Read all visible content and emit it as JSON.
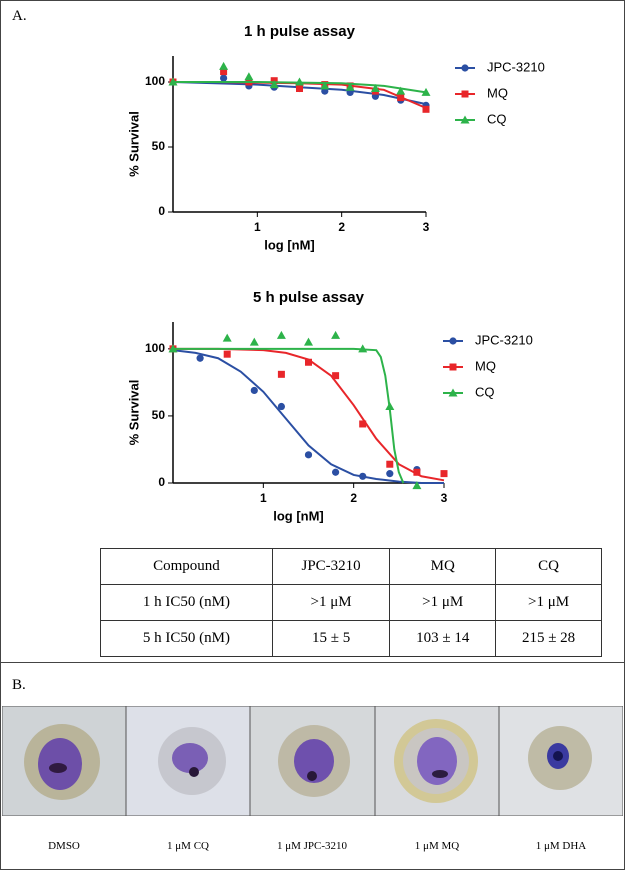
{
  "panels": [
    "A.",
    "B."
  ],
  "chart_data": [
    {
      "type": "scatter",
      "title": "1 h pulse assay",
      "x_label": "log [nM]",
      "y_label": "% Survival",
      "xlim": [
        0,
        3
      ],
      "xticks": [
        1,
        2,
        3
      ],
      "ylim": [
        0,
        120
      ],
      "yticks": [
        0,
        50,
        100
      ],
      "series": [
        {
          "name": "JPC-3210",
          "color": "#2b4fa3",
          "marker": "circle",
          "x": [
            0,
            0.6,
            0.9,
            1.2,
            1.5,
            1.8,
            2.1,
            2.4,
            2.7,
            3
          ],
          "values": [
            100,
            103,
            97,
            96,
            95,
            93,
            92,
            89,
            86,
            82
          ],
          "fit": {
            "x": [
              0,
              0.5,
              1,
              1.5,
              2,
              2.5,
              3
            ],
            "values": [
              100,
              99,
              98,
              96,
              94,
              90,
              83
            ]
          }
        },
        {
          "name": "MQ",
          "color": "#e8262a",
          "marker": "square",
          "x": [
            0,
            0.6,
            0.9,
            1.2,
            1.5,
            1.8,
            2.1,
            2.4,
            2.7,
            3
          ],
          "values": [
            100,
            108,
            100,
            101,
            95,
            98,
            97,
            93,
            88,
            79
          ],
          "fit": {
            "x": [
              0,
              0.5,
              1,
              1.5,
              2,
              2.5,
              3
            ],
            "values": [
              100,
              100,
              99.5,
              99,
              98,
              94,
              80
            ]
          }
        },
        {
          "name": "CQ",
          "color": "#2db34a",
          "marker": "triangle",
          "x": [
            0,
            0.6,
            0.9,
            1.2,
            1.5,
            1.8,
            2.1,
            2.4,
            2.7,
            3
          ],
          "values": [
            100,
            112,
            104,
            98,
            100,
            97,
            96,
            95,
            93,
            92
          ],
          "fit": {
            "x": [
              0,
              0.5,
              1,
              1.5,
              2,
              2.5,
              3
            ],
            "values": [
              100,
              100,
              100,
              99.5,
              99,
              97,
              92
            ]
          }
        }
      ]
    },
    {
      "type": "scatter",
      "title": "5 h pulse assay",
      "x_label": "log [nM]",
      "y_label": "% Survival",
      "xlim": [
        0,
        3
      ],
      "xticks": [
        1,
        2,
        3
      ],
      "ylim": [
        0,
        120
      ],
      "yticks": [
        0,
        50,
        100
      ],
      "series": [
        {
          "name": "JPC-3210",
          "color": "#2b4fa3",
          "marker": "circle",
          "x": [
            0,
            0.3,
            0.9,
            1.2,
            1.5,
            1.8,
            2.1,
            2.4,
            2.7
          ],
          "values": [
            100,
            93,
            69,
            57,
            21,
            8,
            5,
            7,
            10
          ],
          "fit": {
            "x": [
              0,
              0.25,
              0.5,
              0.75,
              1,
              1.25,
              1.5,
              1.75,
              2,
              2.25,
              2.5,
              2.75,
              3
            ],
            "values": [
              99,
              97,
              93,
              83,
              68,
              48,
              28,
              14,
              6,
              3,
              1,
              0,
              0
            ]
          }
        },
        {
          "name": "MQ",
          "color": "#e8262a",
          "marker": "square",
          "x": [
            0,
            0.6,
            1.2,
            1.5,
            1.8,
            2.1,
            2.4,
            2.7,
            3
          ],
          "values": [
            100,
            96,
            81,
            90,
            80,
            44,
            14,
            8,
            7
          ],
          "fit": {
            "x": [
              0,
              0.5,
              1,
              1.25,
              1.5,
              1.75,
              2,
              2.25,
              2.5,
              2.75,
              3
            ],
            "values": [
              100,
              100,
              99,
              97,
              92,
              80,
              58,
              33,
              14,
              5,
              2
            ]
          }
        },
        {
          "name": "CQ",
          "color": "#2db34a",
          "marker": "triangle",
          "x": [
            0,
            0.6,
            0.9,
            1.2,
            1.5,
            1.8,
            2.1,
            2.4,
            2.7
          ],
          "values": [
            100,
            108,
            105,
            110,
            105,
            110,
            100,
            57,
            -2
          ],
          "fit": {
            "x": [
              0,
              0.5,
              1,
              1.5,
              2,
              2.25,
              2.3,
              2.35,
              2.4,
              2.45,
              2.5,
              2.55
            ],
            "values": [
              100,
              100,
              100,
              100,
              100,
              99,
              94,
              80,
              55,
              25,
              8,
              0
            ]
          }
        }
      ]
    }
  ],
  "table": {
    "header": [
      "Compound",
      "JPC-3210",
      "MQ",
      "CQ"
    ],
    "rows": [
      [
        "1 h IC50 (nM)",
        ">1 μM",
        ">1 μM",
        ">1 μM"
      ],
      [
        "5 h IC50 (nM)",
        "15 ± 5",
        "103 ± 14",
        "215 ± 28"
      ]
    ]
  },
  "images": {
    "captions": [
      "DMSO",
      "1 μM CQ",
      "1 μM JPC-3210",
      "1 μM MQ",
      "1 μM DHA"
    ]
  }
}
